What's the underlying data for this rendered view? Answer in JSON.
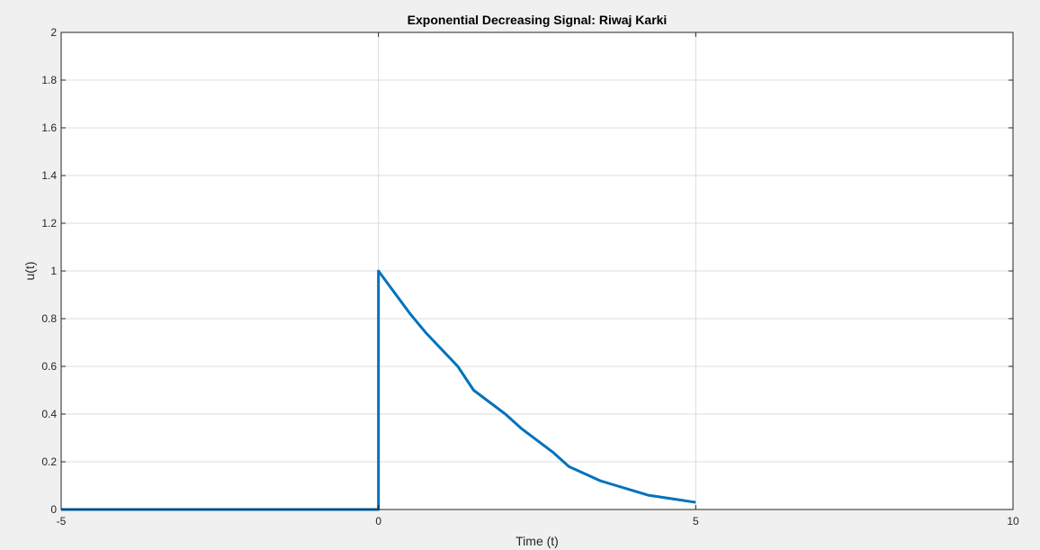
{
  "chart_data": {
    "type": "line",
    "title": "Exponential Decreasing Signal: Riwaj Karki",
    "xlabel": "Time (t)",
    "ylabel": "u(t)",
    "xlim": [
      -5,
      10
    ],
    "ylim": [
      0,
      2
    ],
    "xticks": [
      -5,
      0,
      5,
      10
    ],
    "yticks": [
      0,
      0.2,
      0.4,
      0.6,
      0.8,
      1,
      1.2,
      1.4,
      1.6,
      1.8,
      2
    ],
    "grid": true,
    "legend": "none",
    "line_color": "#0072bd",
    "grid_color": "#dcdcdc",
    "axes_background": "#ffffff",
    "figure_background": "#f0f0f0",
    "series": [
      {
        "x": [
          -5,
          0,
          0,
          0,
          0.25,
          0.5,
          0.75,
          1,
          1.25,
          1.5,
          1.75,
          2,
          2.25,
          2.5,
          2.75,
          3,
          3.25,
          3.5,
          3.75,
          4,
          4.25,
          4.5,
          4.75,
          5
        ],
        "y": [
          0,
          0,
          0.76,
          1,
          0.91,
          0.82,
          0.74,
          0.67,
          0.6,
          0.5,
          0.45,
          0.4,
          0.34,
          0.29,
          0.24,
          0.18,
          0.15,
          0.12,
          0.1,
          0.08,
          0.06,
          0.05,
          0.04,
          0.03
        ]
      }
    ]
  }
}
